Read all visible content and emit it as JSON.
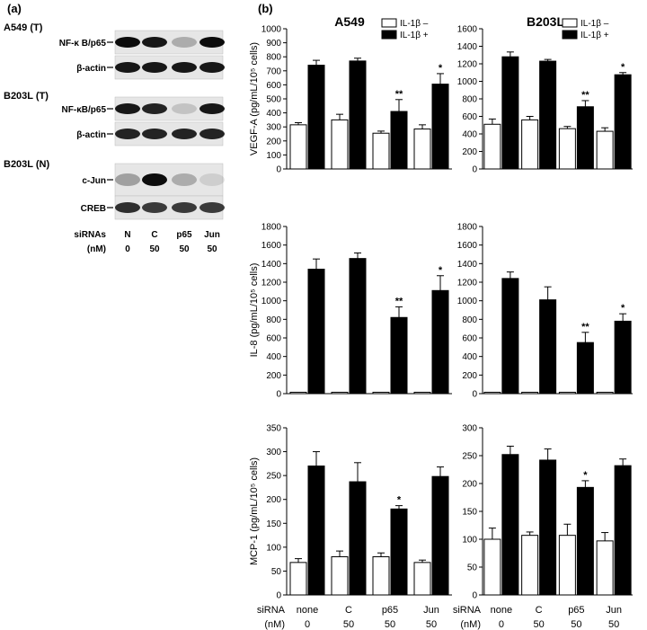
{
  "panel_labels": {
    "a": "(a)",
    "b": "(b)"
  },
  "blots": {
    "sections": [
      {
        "title": "A549 (T)",
        "rows": [
          {
            "label": "NF-κ B/p65",
            "bands": [
              0.95,
              0.9,
              0.25,
              0.95
            ]
          },
          {
            "label": "β-actin",
            "bands": [
              0.9,
              0.9,
              0.9,
              0.9
            ]
          }
        ]
      },
      {
        "title": "B203L (T)",
        "rows": [
          {
            "label": "NF-κB/p65",
            "bands": [
              0.9,
              0.85,
              0.15,
              0.9
            ]
          },
          {
            "label": "β-actin",
            "bands": [
              0.85,
              0.85,
              0.85,
              0.85
            ]
          }
        ]
      },
      {
        "title": "B203L (N)",
        "rows": [
          {
            "label": "c-Jun",
            "bands": [
              0.3,
              0.95,
              0.25,
              0.1
            ]
          },
          {
            "label": "CREB",
            "bands": [
              0.8,
              0.75,
              0.75,
              0.75
            ]
          }
        ]
      }
    ],
    "lane_header": {
      "line1": "siRNAs",
      "line2": "(nM)"
    },
    "lanes": [
      {
        "name": "N",
        "conc": "0"
      },
      {
        "name": "C",
        "conc": "50"
      },
      {
        "name": "p65",
        "conc": "50"
      },
      {
        "name": "Jun",
        "conc": "50"
      }
    ]
  },
  "legend": {
    "minus": "IL-1β –",
    "plus": "IL-1β +"
  },
  "xaxis": {
    "header_line1": "siRNA",
    "header_line2": "(nM)",
    "categories": [
      "none",
      "C",
      "p65",
      "Jun"
    ],
    "conc": [
      "0",
      "50",
      "50",
      "50"
    ]
  },
  "colors": {
    "minus": "#ffffff",
    "plus": "#000000"
  },
  "chart_data": [
    {
      "type": "bar",
      "title": "A549",
      "ylabel": "VEGF-A (pg/mL/10⁵ cells)",
      "ylim": [
        0,
        1000
      ],
      "yticks": [
        0,
        100,
        200,
        300,
        400,
        500,
        600,
        700,
        800,
        900,
        1000
      ],
      "categories": [
        "none",
        "C",
        "p65",
        "Jun"
      ],
      "series": [
        {
          "name": "IL-1β –",
          "values": [
            315,
            350,
            255,
            285
          ],
          "err": [
            15,
            40,
            15,
            30
          ]
        },
        {
          "name": "IL-1β +",
          "values": [
            740,
            770,
            410,
            605
          ],
          "err": [
            35,
            20,
            85,
            75
          ]
        }
      ],
      "annotations": [
        "",
        "",
        "**",
        "*"
      ]
    },
    {
      "type": "bar",
      "title": "B203L",
      "ylabel": "",
      "ylim": [
        0,
        1600
      ],
      "yticks": [
        0,
        200,
        400,
        600,
        800,
        1000,
        1200,
        1400,
        1600
      ],
      "categories": [
        "none",
        "C",
        "p65",
        "Jun"
      ],
      "series": [
        {
          "name": "IL-1β –",
          "values": [
            510,
            560,
            460,
            430
          ],
          "err": [
            60,
            40,
            25,
            40
          ]
        },
        {
          "name": "IL-1β +",
          "values": [
            1280,
            1230,
            710,
            1075
          ],
          "err": [
            55,
            20,
            70,
            25
          ]
        }
      ],
      "annotations": [
        "",
        "",
        "**",
        "*"
      ]
    },
    {
      "type": "bar",
      "title": "",
      "ylabel": "IL-8 (pg/mL/10⁵ cells)",
      "ylim": [
        0,
        1800
      ],
      "yticks": [
        0,
        200,
        400,
        600,
        800,
        1000,
        1200,
        1400,
        1600,
        1800
      ],
      "categories": [
        "none",
        "C",
        "p65",
        "Jun"
      ],
      "series": [
        {
          "name": "IL-1β –",
          "values": [
            15,
            15,
            15,
            15
          ],
          "err": [
            0,
            0,
            0,
            0
          ]
        },
        {
          "name": "IL-1β +",
          "values": [
            1340,
            1455,
            820,
            1110
          ],
          "err": [
            110,
            60,
            115,
            160
          ]
        }
      ],
      "annotations": [
        "",
        "",
        "**",
        "*"
      ]
    },
    {
      "type": "bar",
      "title": "",
      "ylabel": "",
      "ylim": [
        0,
        1800
      ],
      "yticks": [
        0,
        200,
        400,
        600,
        800,
        1000,
        1200,
        1400,
        1600,
        1800
      ],
      "categories": [
        "none",
        "C",
        "p65",
        "Jun"
      ],
      "series": [
        {
          "name": "IL-1β –",
          "values": [
            15,
            15,
            15,
            15
          ],
          "err": [
            0,
            0,
            0,
            0
          ]
        },
        {
          "name": "IL-1β +",
          "values": [
            1240,
            1010,
            550,
            780
          ],
          "err": [
            70,
            140,
            110,
            80
          ]
        }
      ],
      "annotations": [
        "",
        "",
        "**",
        "*"
      ]
    },
    {
      "type": "bar",
      "title": "",
      "ylabel": "MCP-1 (pg/mL/10⁵ cells)",
      "ylim": [
        0,
        350
      ],
      "yticks": [
        0,
        50,
        100,
        150,
        200,
        250,
        300,
        350
      ],
      "categories": [
        "none",
        "C",
        "p65",
        "Jun"
      ],
      "series": [
        {
          "name": "IL-1β –",
          "values": [
            68,
            80,
            80,
            68
          ],
          "err": [
            8,
            12,
            8,
            5
          ]
        },
        {
          "name": "IL-1β +",
          "values": [
            270,
            237,
            180,
            248
          ],
          "err": [
            30,
            40,
            7,
            20
          ]
        }
      ],
      "annotations": [
        "",
        "",
        "*",
        ""
      ]
    },
    {
      "type": "bar",
      "title": "",
      "ylabel": "",
      "ylim": [
        0,
        300
      ],
      "yticks": [
        0,
        50,
        100,
        150,
        200,
        250,
        300
      ],
      "categories": [
        "none",
        "C",
        "p65",
        "Jun"
      ],
      "series": [
        {
          "name": "IL-1β –",
          "values": [
            100,
            107,
            107,
            97
          ],
          "err": [
            20,
            6,
            20,
            15
          ]
        },
        {
          "name": "IL-1β +",
          "values": [
            252,
            242,
            193,
            232
          ],
          "err": [
            15,
            20,
            12,
            12
          ]
        }
      ],
      "annotations": [
        "",
        "",
        "*",
        ""
      ]
    }
  ]
}
